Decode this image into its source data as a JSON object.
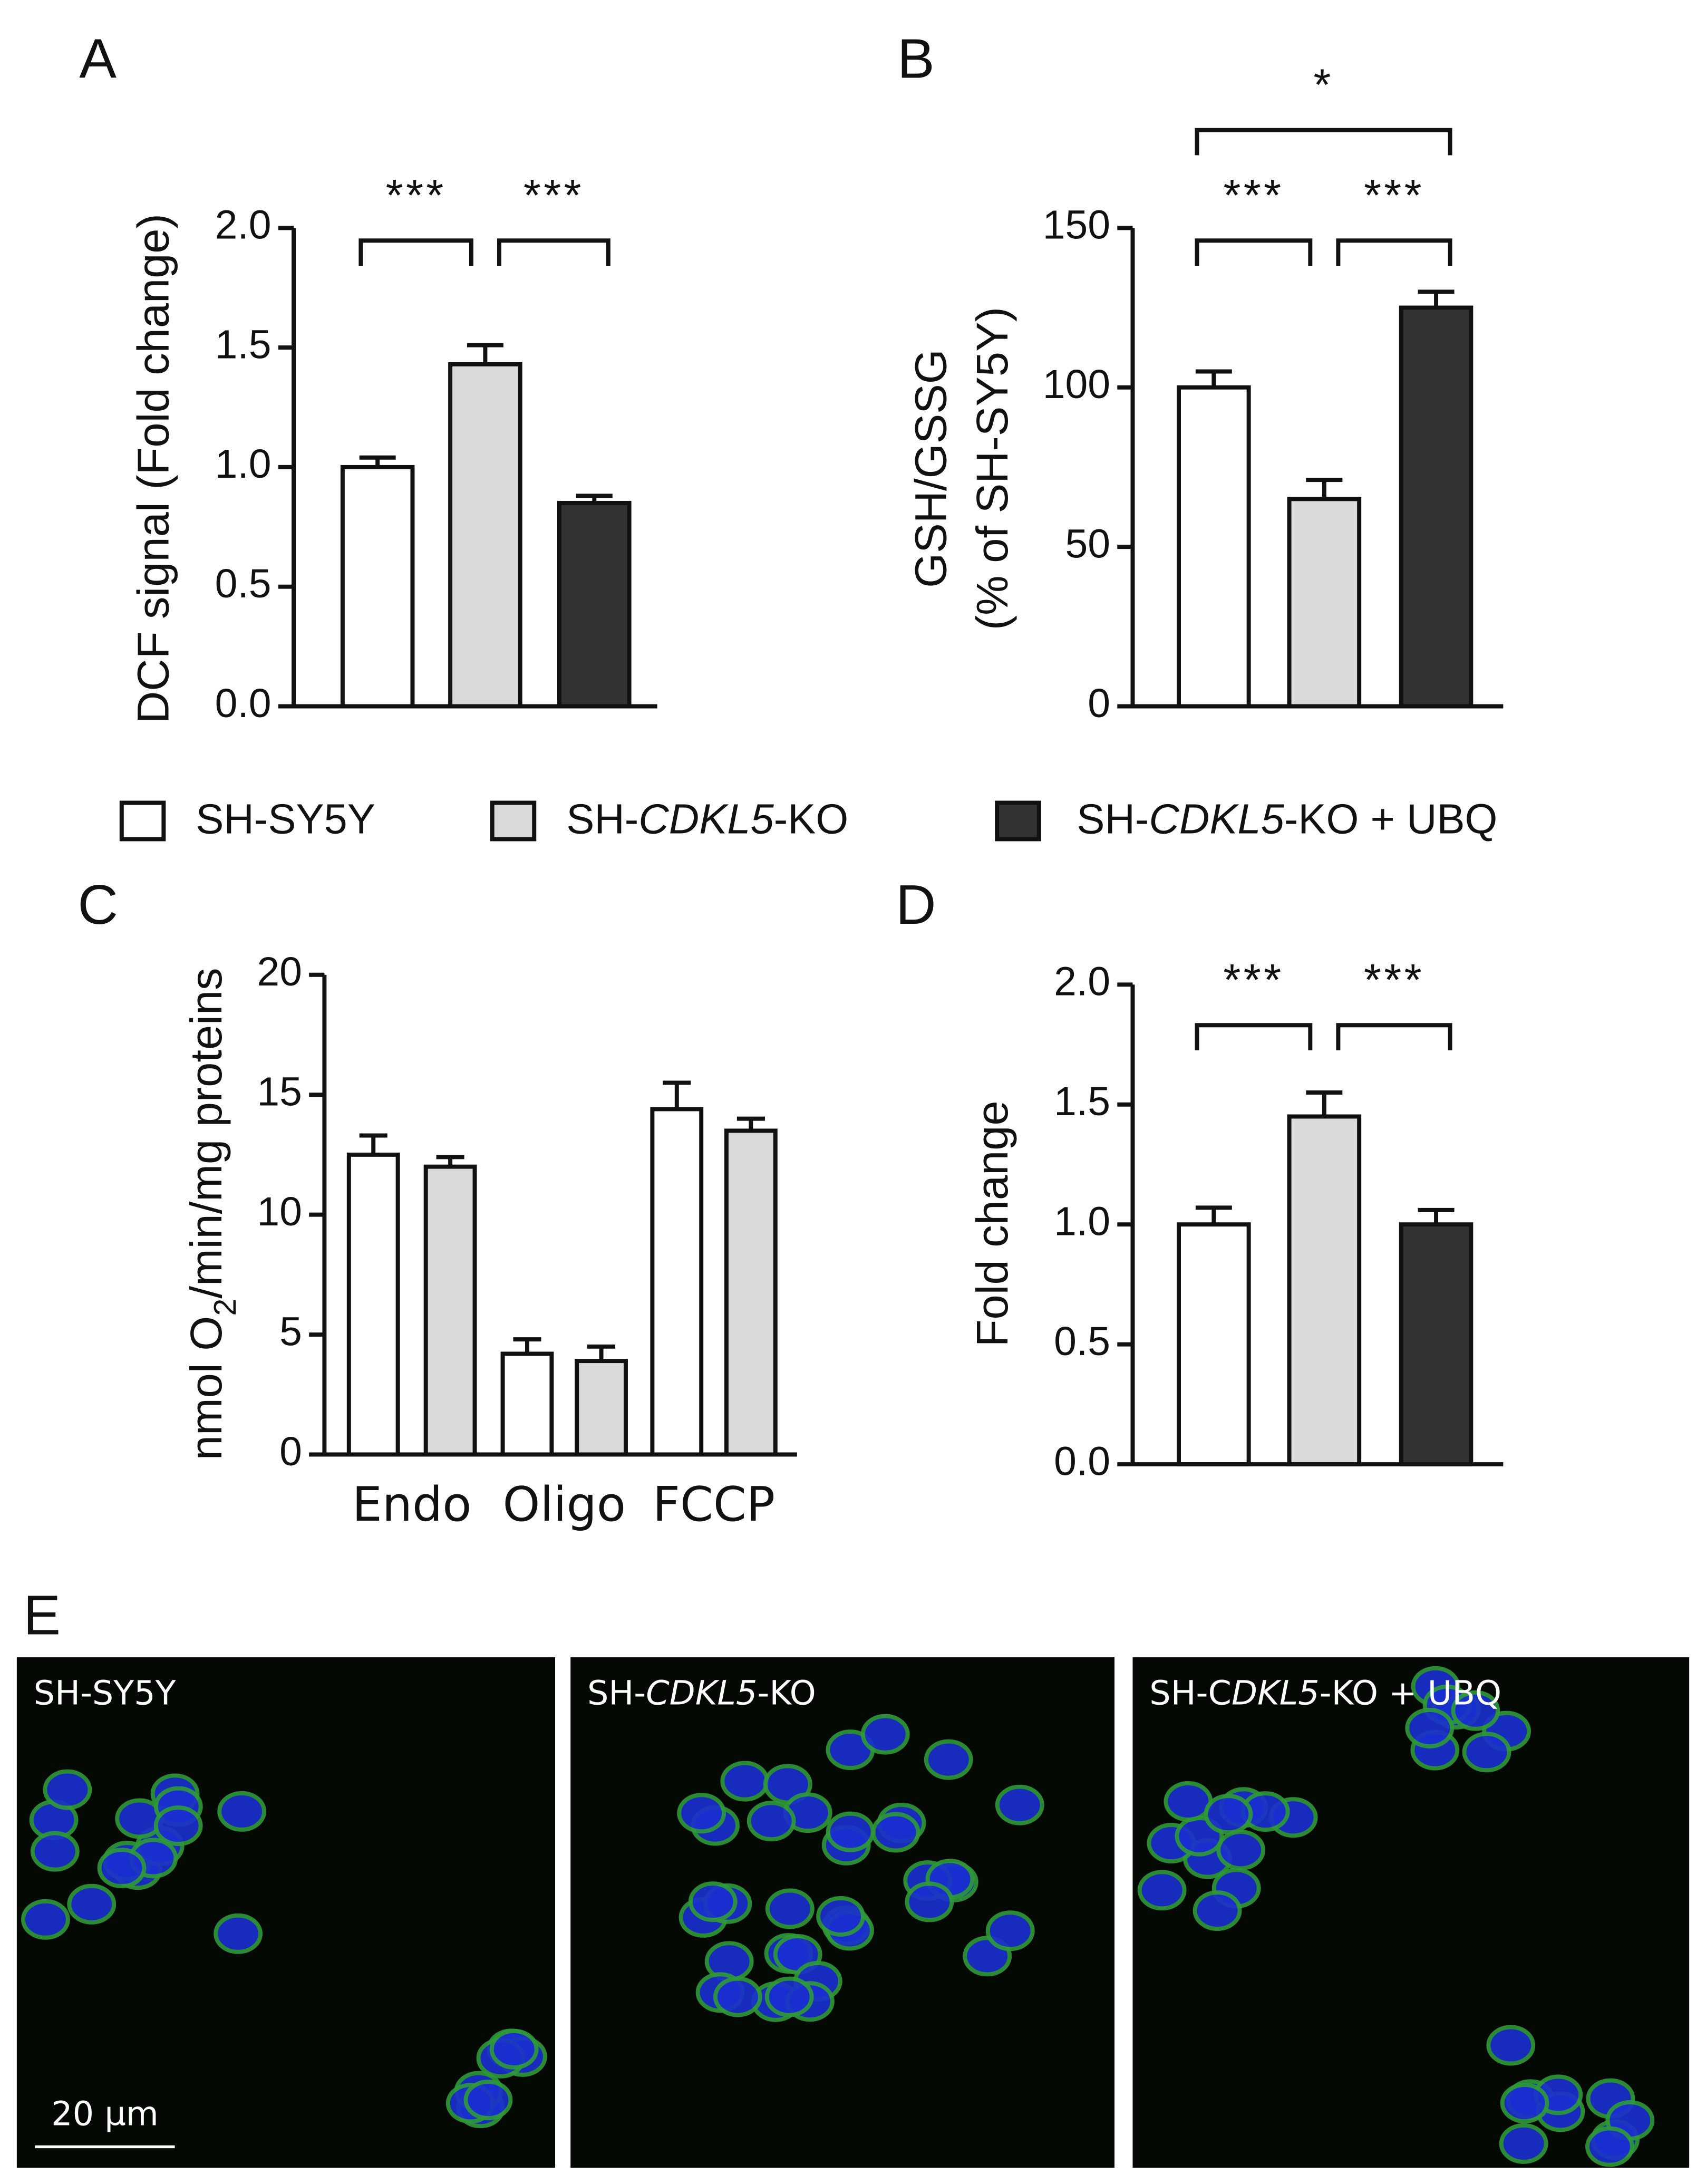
{
  "chart_data": [
    {
      "type": "bar",
      "panel": "A",
      "ylabel": "DCF signal (Fold change)",
      "categories": [
        null,
        null,
        null
      ],
      "values": [
        1.0,
        1.43,
        0.85
      ],
      "errors": [
        0.04,
        0.08,
        0.03
      ],
      "colors": [
        "#ffffff",
        "#d9d9d9",
        "#333333"
      ],
      "ylim": [
        0,
        2
      ],
      "yticks": [
        {
          "value": 0,
          "label": "0.0"
        },
        {
          "value": 0.5,
          "label": "0.5"
        },
        {
          "value": 1,
          "label": "1.0"
        },
        {
          "value": 1.5,
          "label": "1.5"
        },
        {
          "value": 2,
          "label": "2.0"
        }
      ],
      "annotations": [
        {
          "from": 0,
          "to": 1,
          "label": "***"
        },
        {
          "from": 1,
          "to": 2,
          "label": "***"
        }
      ]
    },
    {
      "type": "bar",
      "panel": "B",
      "ylabel": [
        "GSH/GSSG",
        "(% of SH-SY5Y)"
      ],
      "categories": [
        null,
        null,
        null
      ],
      "values": [
        100,
        65,
        125
      ],
      "errors": [
        5,
        6,
        5
      ],
      "colors": [
        "#ffffff",
        "#d9d9d9",
        "#333333"
      ],
      "ylim": [
        0,
        150
      ],
      "yticks": [
        0,
        50,
        100,
        150
      ],
      "annotations": [
        {
          "from": 0,
          "to": 2,
          "label": "*"
        },
        {
          "from": 0,
          "to": 1,
          "label": "***"
        },
        {
          "from": 1,
          "to": 2,
          "label": "***"
        }
      ]
    },
    {
      "type": "grouped-bar",
      "panel": "C",
      "ylabel_parts": [
        {
          "text": "nmol O"
        },
        {
          "text": "2",
          "sub": true
        },
        {
          "text": "/min/mg proteins"
        }
      ],
      "categories": [
        "Endo",
        "Oligo",
        "FCCP"
      ],
      "series": [
        {
          "name": "SH-SY5Y",
          "color": "#ffffff",
          "values": [
            12.5,
            4.2,
            14.4
          ],
          "errors": [
            0.8,
            0.6,
            1.1
          ]
        },
        {
          "name": "SH-CDKL5-KO",
          "color": "#d9d9d9",
          "values": [
            12.0,
            3.9,
            13.5
          ],
          "errors": [
            0.4,
            0.6,
            0.5
          ]
        }
      ],
      "ylim": [
        0,
        20
      ],
      "yticks": [
        0,
        5,
        10,
        15,
        20
      ]
    },
    {
      "type": "bar",
      "panel": "D",
      "ylabel": "Fold change",
      "categories": [
        null,
        null,
        null
      ],
      "values": [
        1.0,
        1.45,
        1.0
      ],
      "errors": [
        0.07,
        0.1,
        0.06
      ],
      "colors": [
        "#ffffff",
        "#d9d9d9",
        "#333333"
      ],
      "ylim": [
        0,
        2
      ],
      "yticks": [
        {
          "value": 0,
          "label": "0.0"
        },
        {
          "value": 0.5,
          "label": "0.5"
        },
        {
          "value": 1,
          "label": "1.0"
        },
        {
          "value": 1.5,
          "label": "1.5"
        },
        {
          "value": 2,
          "label": "2.0"
        }
      ],
      "annotations": [
        {
          "from": 0,
          "to": 1,
          "label": "***"
        },
        {
          "from": 1,
          "to": 2,
          "label": "***"
        }
      ]
    }
  ],
  "legend": [
    {
      "color": "#ffffff",
      "parts": [
        {
          "text": "SH-SY5Y"
        }
      ]
    },
    {
      "color": "#d9d9d9",
      "parts": [
        {
          "text": "SH-"
        },
        {
          "text": "CDKL5",
          "italic": true
        },
        {
          "text": "-KO"
        }
      ]
    },
    {
      "color": "#333333",
      "parts": [
        {
          "text": "SH-"
        },
        {
          "text": "CDKL5",
          "italic": true
        },
        {
          "text": "-KO + UBQ"
        }
      ]
    }
  ],
  "panel_e": {
    "label": "E",
    "scale_bar": "20 µm",
    "images": [
      {
        "parts": [
          {
            "text": "SH-SY5Y"
          }
        ]
      },
      {
        "parts": [
          {
            "text": "SH-"
          },
          {
            "text": "CDKL5",
            "italic": true
          },
          {
            "text": "-KO"
          }
        ]
      },
      {
        "parts": [
          {
            "text": "SH-C"
          },
          {
            "text": "DKL5",
            "italic": true
          },
          {
            "text": "-KO + UBQ"
          }
        ]
      }
    ]
  }
}
